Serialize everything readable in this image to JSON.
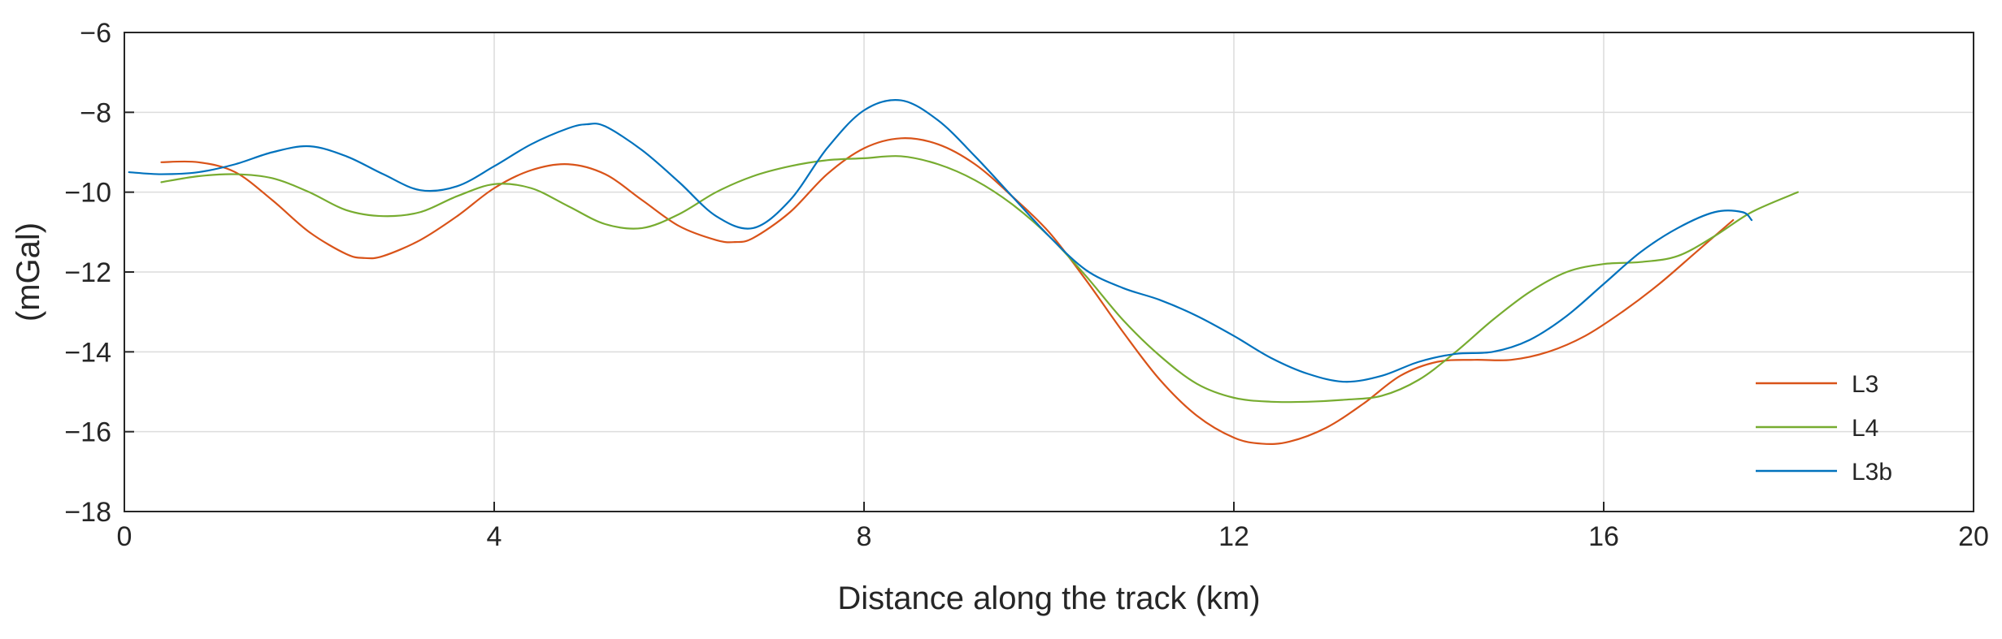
{
  "chart_data": {
    "type": "line",
    "title": "",
    "xlabel": "Distance along the track (km)",
    "ylabel": "(mGal)",
    "xlim": [
      0,
      20
    ],
    "ylim": [
      -18,
      -6
    ],
    "xticks": [
      0,
      4,
      8,
      12,
      16,
      20
    ],
    "yticks": [
      -18,
      -16,
      -14,
      -12,
      -10,
      -8,
      -6
    ],
    "xtick_labels": [
      "0",
      "4",
      "8",
      "12",
      "16",
      "20"
    ],
    "ytick_labels": [
      "−18",
      "−16",
      "−14",
      "−12",
      "−10",
      "−8",
      "−6"
    ],
    "grid": true,
    "legend_position": "bottom-right",
    "series": [
      {
        "name": "L3",
        "color": "#d95319",
        "x": [
          0.4,
          0.8,
          1.2,
          1.6,
          2.0,
          2.4,
          2.6,
          2.8,
          3.2,
          3.6,
          4.0,
          4.4,
          4.8,
          5.2,
          5.6,
          6.0,
          6.4,
          6.6,
          6.8,
          7.2,
          7.6,
          8.0,
          8.4,
          8.8,
          9.2,
          9.6,
          10.0,
          10.4,
          10.8,
          11.2,
          11.6,
          12.0,
          12.3,
          12.6,
          13.0,
          13.4,
          13.8,
          14.2,
          14.6,
          15.0,
          15.4,
          15.8,
          16.2,
          16.6,
          17.0,
          17.4
        ],
        "y": [
          -9.25,
          -9.25,
          -9.5,
          -10.2,
          -11.0,
          -11.55,
          -11.65,
          -11.6,
          -11.2,
          -10.6,
          -9.9,
          -9.45,
          -9.3,
          -9.55,
          -10.2,
          -10.85,
          -11.2,
          -11.25,
          -11.15,
          -10.5,
          -9.55,
          -8.9,
          -8.65,
          -8.8,
          -9.3,
          -10.1,
          -11.0,
          -12.2,
          -13.5,
          -14.7,
          -15.6,
          -16.15,
          -16.3,
          -16.25,
          -15.9,
          -15.3,
          -14.6,
          -14.25,
          -14.2,
          -14.2,
          -14.0,
          -13.6,
          -13.0,
          -12.3,
          -11.5,
          -10.7
        ]
      },
      {
        "name": "L4",
        "color": "#77ac30",
        "x": [
          0.4,
          0.8,
          1.2,
          1.6,
          2.0,
          2.4,
          2.8,
          3.2,
          3.6,
          4.0,
          4.4,
          4.8,
          5.2,
          5.6,
          6.0,
          6.4,
          6.8,
          7.2,
          7.6,
          8.0,
          8.4,
          8.8,
          9.2,
          9.6,
          10.0,
          10.4,
          10.8,
          11.2,
          11.6,
          12.0,
          12.4,
          12.8,
          13.2,
          13.6,
          14.0,
          14.4,
          14.8,
          15.2,
          15.6,
          16.0,
          16.4,
          16.8,
          17.2,
          17.6,
          18.1
        ],
        "y": [
          -9.75,
          -9.6,
          -9.55,
          -9.65,
          -10.0,
          -10.45,
          -10.6,
          -10.5,
          -10.1,
          -9.8,
          -9.9,
          -10.35,
          -10.8,
          -10.9,
          -10.55,
          -10.0,
          -9.6,
          -9.35,
          -9.2,
          -9.15,
          -9.1,
          -9.3,
          -9.7,
          -10.3,
          -11.1,
          -12.1,
          -13.2,
          -14.1,
          -14.8,
          -15.15,
          -15.25,
          -15.25,
          -15.2,
          -15.1,
          -14.7,
          -14.0,
          -13.2,
          -12.5,
          -12.0,
          -11.8,
          -11.75,
          -11.6,
          -11.1,
          -10.5,
          -10.0
        ]
      },
      {
        "name": "L3b",
        "color": "#0072bd",
        "x": [
          0.05,
          0.4,
          0.8,
          1.2,
          1.6,
          2.0,
          2.4,
          2.8,
          3.2,
          3.6,
          4.0,
          4.4,
          4.8,
          5.0,
          5.2,
          5.6,
          6.0,
          6.4,
          6.8,
          7.2,
          7.6,
          8.0,
          8.4,
          8.8,
          9.2,
          9.6,
          10.0,
          10.4,
          10.8,
          11.2,
          11.6,
          12.0,
          12.4,
          12.8,
          13.2,
          13.6,
          14.0,
          14.4,
          14.8,
          15.2,
          15.6,
          16.0,
          16.4,
          16.8,
          17.2,
          17.5,
          17.6
        ],
        "y": [
          -9.5,
          -9.55,
          -9.5,
          -9.3,
          -9.0,
          -8.85,
          -9.1,
          -9.55,
          -9.95,
          -9.85,
          -9.35,
          -8.8,
          -8.4,
          -8.3,
          -8.35,
          -8.95,
          -9.75,
          -10.6,
          -10.9,
          -10.2,
          -8.9,
          -7.95,
          -7.7,
          -8.2,
          -9.1,
          -10.1,
          -11.1,
          -11.95,
          -12.4,
          -12.7,
          -13.1,
          -13.6,
          -14.15,
          -14.55,
          -14.75,
          -14.6,
          -14.25,
          -14.05,
          -14.0,
          -13.7,
          -13.1,
          -12.3,
          -11.5,
          -10.9,
          -10.5,
          -10.5,
          -10.7
        ]
      }
    ]
  }
}
